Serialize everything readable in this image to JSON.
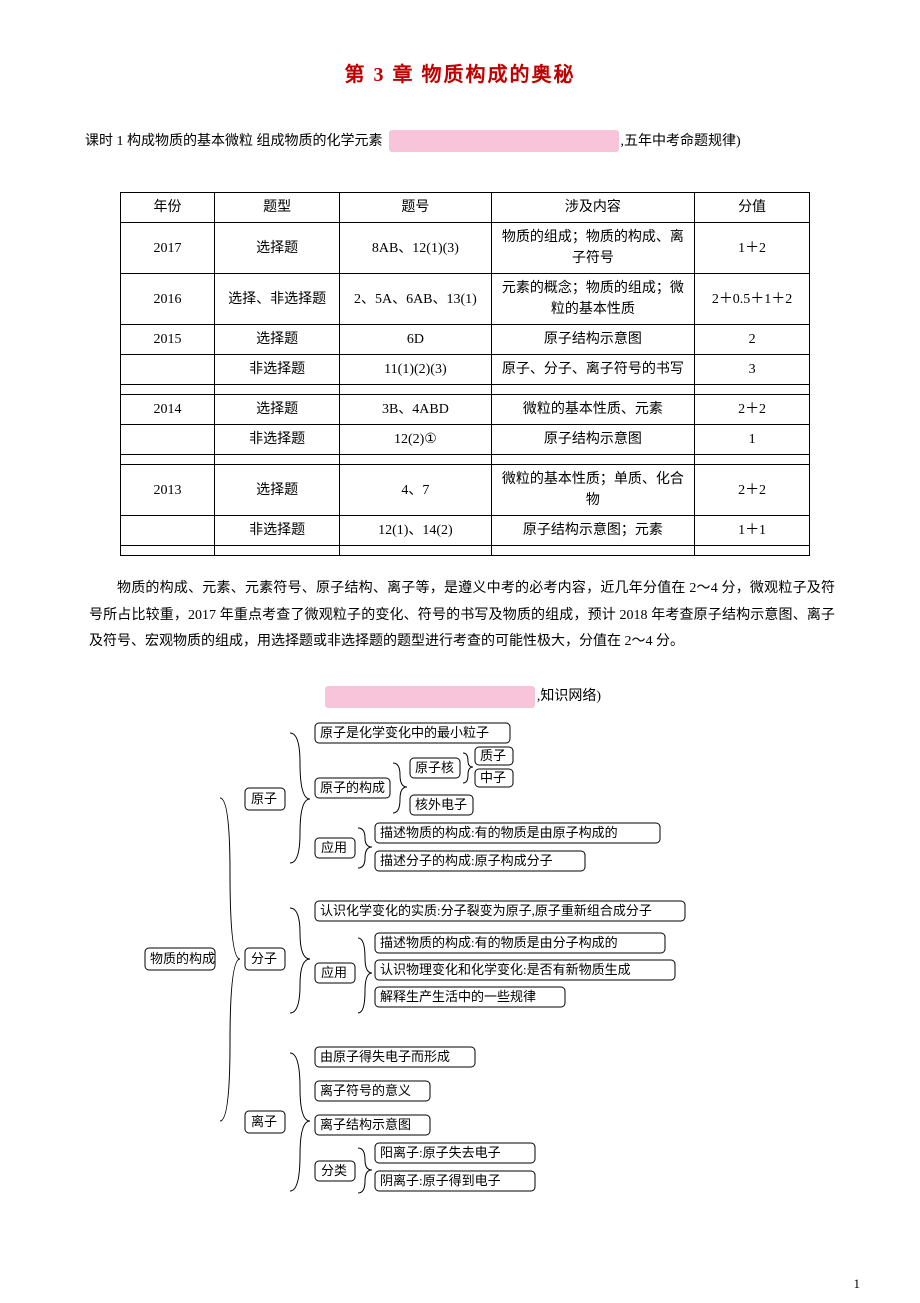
{
  "title": {
    "text": "第 3 章   物质构成的奥秘",
    "color": "#c00000"
  },
  "subtitle": {
    "prefix": "课时 1  构成物质的基本微粒  组成物质的化学元素",
    "suffix": ",五年中考命题规律)"
  },
  "table": {
    "headers": [
      "年份",
      "题型",
      "题号",
      "涉及内容",
      "分值"
    ],
    "rows": [
      {
        "year": "2017",
        "type": "选择题",
        "qno": "8AB、12(1)(3)",
        "content": "物质的组成；物质的构成、离子符号",
        "score": "1＋2"
      },
      {
        "year": "2016",
        "type": "选择、非选择题",
        "qno": "2、5A、6AB、13(1)",
        "content": "元素的概念；物质的组成；微粒的基本性质",
        "score": "2＋0.5＋1＋2"
      },
      {
        "year": "2015",
        "type": "选择题",
        "qno": "6D",
        "content": "原子结构示意图",
        "score": "2"
      },
      {
        "year": "",
        "type": "非选择题",
        "qno": "11(1)(2)(3)",
        "content": "原子、分子、离子符号的书写",
        "score": "3"
      },
      {
        "year": "2014",
        "type": "选择题",
        "qno": "3B、4ABD",
        "content": "微粒的基本性质、元素",
        "score": "2＋2"
      },
      {
        "year": "",
        "type": "非选择题",
        "qno": "12(2)①",
        "content": "原子结构示意图",
        "score": "1"
      },
      {
        "year": "2013",
        "type": "选择题",
        "qno": "4、7",
        "content": "微粒的基本性质；单质、化合物",
        "score": "2＋2"
      },
      {
        "year": "",
        "type": "非选择题",
        "qno": "12(1)、14(2)",
        "content": "原子结构示意图；元素",
        "score": "1＋1"
      }
    ],
    "spacer_after": [
      3,
      5,
      7
    ]
  },
  "paragraph": "物质的构成、元素、元素符号、原子结构、离子等，是遵义中考的必考内容，近几年分值在 2～4 分，微观粒子及符号所占比较重，2017 年重点考查了微观粒子的变化、符号的书写及物质的组成，预计 2018 年考查原子结构示意图、离子及符号、宏观物质的组成，用选择题或非选择题的题型进行考查的可能性极大，分值在 2～4 分。",
  "section2_suffix": ",知识网络)",
  "mindmap": {
    "root": "物质的构成",
    "atom": {
      "label": "原子",
      "line1": "原子是化学变化中的最小粒子",
      "comp": {
        "label": "原子的构成",
        "nuc": "原子核",
        "p": "质子",
        "n": "中子",
        "e": "核外电子"
      },
      "app": {
        "label": "应用",
        "a": "描述物质的构成:有的物质是由原子构成的",
        "b": "描述分子的构成:原子构成分子"
      }
    },
    "mol": {
      "label": "分子",
      "line1": "认识化学变化的实质:分子裂变为原子,原子重新组合成分子",
      "app": {
        "label": "应用",
        "a": "描述物质的构成:有的物质是由分子构成的",
        "b": "认识物理变化和化学变化:是否有新物质生成",
        "c": "解释生产生活中的一些规律"
      }
    },
    "ion": {
      "label": "离子",
      "a": "由原子得失电子而形成",
      "b": "离子符号的意义",
      "c": "离子结构示意图",
      "cls": {
        "label": "分类",
        "p": "阳离子:原子失去电子",
        "n": "阴离子:原子得到电子"
      }
    }
  },
  "page_number": "1",
  "colors": {
    "accent": "#c00000",
    "pink": "#f7c4d9",
    "border": "#000000",
    "bg": "#ffffff"
  }
}
